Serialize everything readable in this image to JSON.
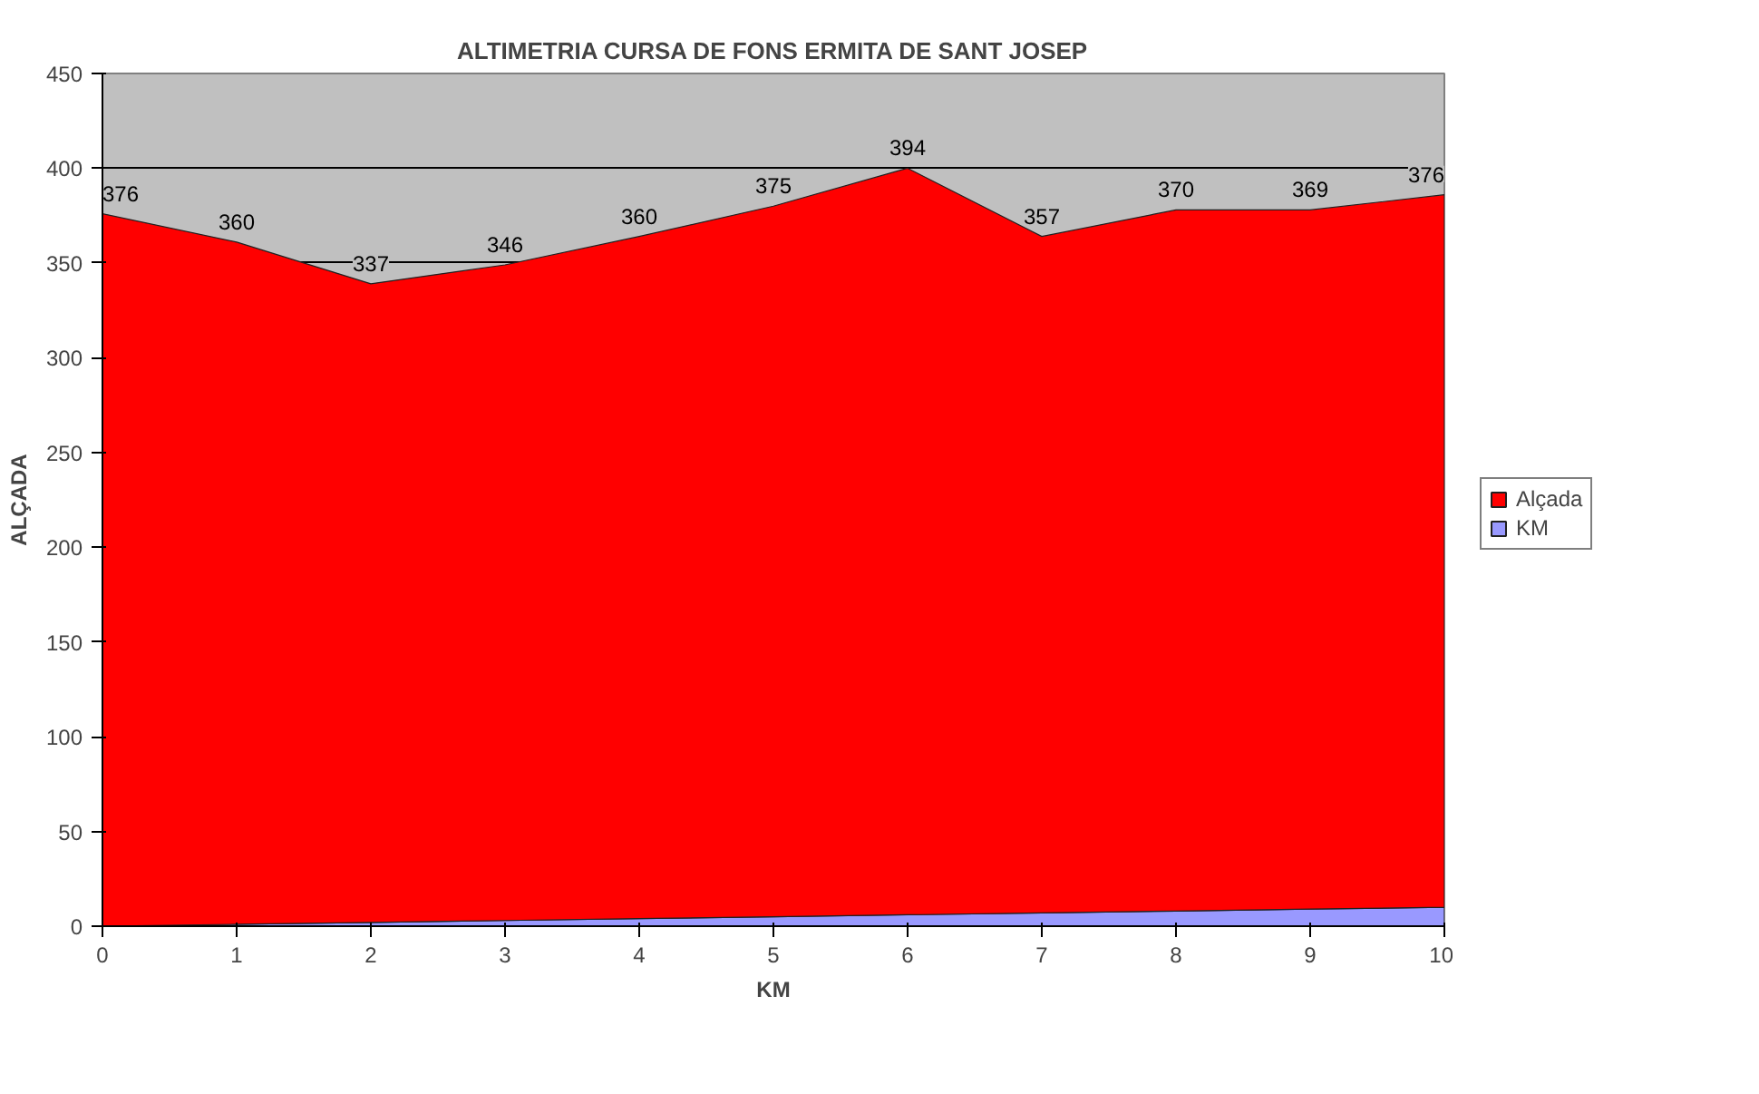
{
  "chart_data": {
    "type": "area",
    "title": "ALTIMETRIA CURSA DE FONS ERMITA DE SANT JOSEP",
    "xlabel": "KM",
    "ylabel": "ALÇADA",
    "x": [
      0,
      1,
      2,
      3,
      4,
      5,
      6,
      7,
      8,
      9,
      10
    ],
    "stacked": true,
    "series": [
      {
        "name": "KM",
        "color": "#9999ff",
        "values": [
          0,
          1,
          2,
          3,
          4,
          5,
          6,
          7,
          8,
          9,
          10
        ]
      },
      {
        "name": "Alçada",
        "color": "#ff0000",
        "values": [
          376,
          360,
          337,
          346,
          360,
          375,
          394,
          357,
          370,
          369,
          376
        ],
        "value_labels": [
          "376",
          "360",
          "337",
          "346",
          "360",
          "375",
          "394",
          "357",
          "370",
          "369",
          "376"
        ]
      }
    ],
    "xlim": [
      0,
      10
    ],
    "xticks": [
      0,
      1,
      2,
      3,
      4,
      5,
      6,
      7,
      8,
      9,
      10
    ],
    "ylim": [
      0,
      450
    ],
    "yticks": [
      0,
      50,
      100,
      150,
      200,
      250,
      300,
      350,
      400,
      450
    ],
    "grid": "y",
    "legend": "right"
  }
}
